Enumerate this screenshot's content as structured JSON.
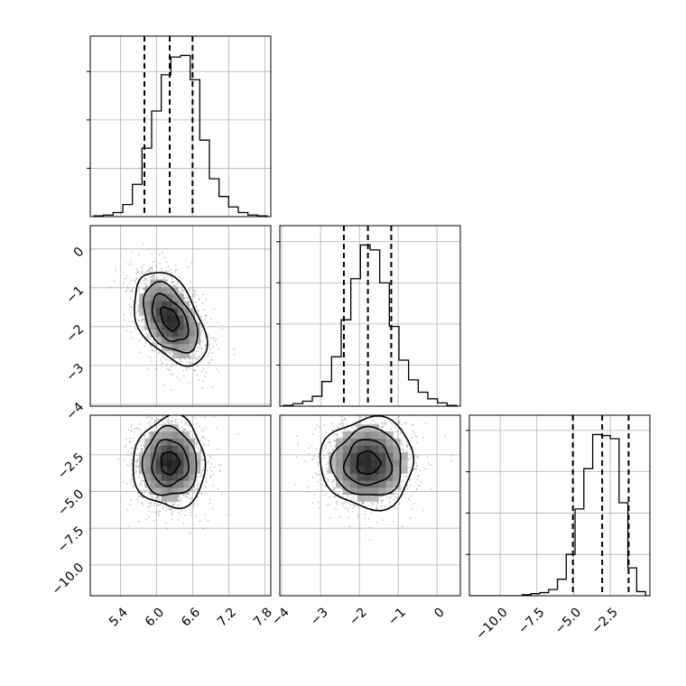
{
  "chart_data": {
    "type": "corner",
    "grid": true,
    "params": [
      {
        "xlim": [
          4.9,
          7.9
        ],
        "xticks": [
          5.4,
          6.0,
          6.6,
          7.2,
          7.8
        ],
        "xtick_labels": [
          "5.4",
          "6.0",
          "6.6",
          "7.2",
          "7.8"
        ],
        "quantiles": [
          5.8,
          6.22,
          6.6
        ],
        "hist_counts": [
          1,
          2,
          5,
          15,
          40,
          85,
          131,
          176,
          198,
          200,
          170,
          95,
          47,
          25,
          12,
          5,
          2,
          1
        ]
      },
      {
        "xlim": [
          -4.05,
          0.6
        ],
        "xticks": [
          -4,
          -3,
          -2,
          -1,
          0
        ],
        "xtick_labels": [
          "−4",
          "−3",
          "−2",
          "−1",
          "0"
        ],
        "quantiles": [
          -2.4,
          -1.78,
          -1.18
        ],
        "hist_counts": [
          1,
          3,
          6,
          12,
          30,
          60,
          105,
          155,
          196,
          190,
          150,
          97,
          56,
          32,
          17,
          9,
          4,
          1
        ]
      },
      {
        "xlim": [
          -12.1,
          0.2
        ],
        "xticks": [
          -10.0,
          -7.5,
          -5.0,
          -2.5
        ],
        "xtick_labels": [
          "−10.0",
          "−7.5",
          "−5.0",
          "−2.5"
        ],
        "quantiles": [
          -5.05,
          -3.05,
          -1.25
        ],
        "hist_counts": [
          0,
          0,
          0,
          0,
          0,
          0,
          1,
          2,
          3,
          6,
          16,
          40,
          84,
          123,
          156,
          155,
          152,
          90,
          27,
          4,
          0
        ],
        "hist_edges": [
          -12.1,
          -11.5,
          -10.9,
          -10.3,
          -9.7,
          -9.1,
          -8.5,
          -7.9,
          -7.3,
          -6.7,
          -6.1,
          -5.5,
          -4.9,
          -4.3,
          -3.7,
          -3.1,
          -2.5,
          -1.9,
          -1.3,
          -0.7,
          -0.1,
          0.2
        ]
      }
    ],
    "yticks_row1": [
      0,
      -1,
      -2,
      -3,
      -4
    ],
    "ytick_labels_row1": [
      "0",
      "−1",
      "−2",
      "−3",
      "−4"
    ],
    "yticks_row2": [
      -2.5,
      -5.0,
      -7.5,
      -10.0
    ],
    "ytick_labels_row2": [
      "−2.5",
      "−5.0",
      "−7.5",
      "−10.0"
    ],
    "pairs": [
      {
        "row": 1,
        "col": 0,
        "center": [
          6.22,
          -1.8
        ],
        "sd": [
          0.3,
          0.6
        ],
        "rho": -0.45
      },
      {
        "row": 2,
        "col": 0,
        "center": [
          6.22,
          -3.05
        ],
        "sd": [
          0.3,
          1.55
        ],
        "rho": 0.0
      },
      {
        "row": 2,
        "col": 1,
        "center": [
          -1.78,
          -3.05
        ],
        "sd": [
          0.6,
          1.55
        ],
        "rho": 0.0
      }
    ]
  }
}
